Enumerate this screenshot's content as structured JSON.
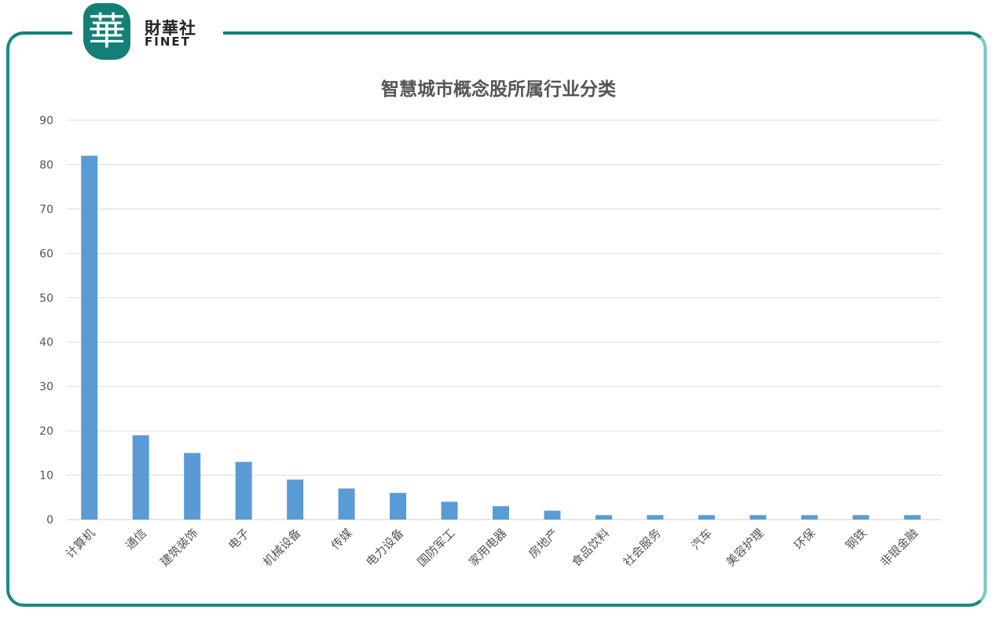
{
  "logo": {
    "glyph": "華",
    "name_cn": "財華社",
    "name_en": "FINET",
    "color": "#147f76"
  },
  "chart_data": {
    "type": "bar",
    "title": "智慧城市概念股所属行业分类",
    "categories": [
      "计算机",
      "通信",
      "建筑装饰",
      "电子",
      "机械设备",
      "传媒",
      "电力设备",
      "国防军工",
      "家用电器",
      "房地产",
      "食品饮料",
      "社会服务",
      "汽车",
      "美容护理",
      "环保",
      "钢铁",
      "非银金融"
    ],
    "values": [
      82,
      19,
      15,
      13,
      9,
      7,
      6,
      4,
      3,
      2,
      1,
      1,
      1,
      1,
      1,
      1,
      1
    ],
    "ylim": [
      0,
      90
    ],
    "yticks": [
      0,
      10,
      20,
      30,
      40,
      50,
      60,
      70,
      80,
      90
    ],
    "grid": true,
    "bar_color": "#5b9bd5"
  }
}
